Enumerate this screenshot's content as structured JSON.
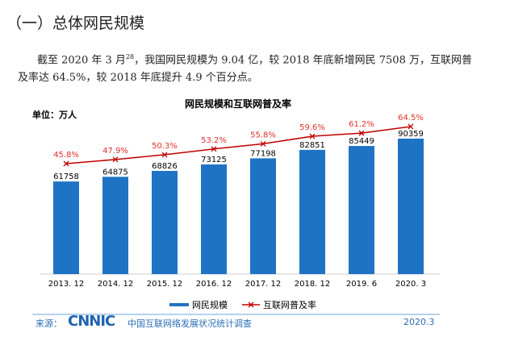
{
  "heading": "（一）总体网民规模",
  "paragraph": {
    "line1_a": "截至 2020 年 3 月",
    "footnote": "28",
    "line1_b": "，我国网民规模为 9.04 亿，较 2018 年底新增网民 7508 万，互联网普",
    "line2": "及率达 64.5%，较 2018 年底提升 4.9 个百分点。"
  },
  "chart_data": {
    "type": "bar+line",
    "title": "网民规模和互联网普及率",
    "unit_label": "单位：万人",
    "categories": [
      "2013. 12",
      "2014. 12",
      "2015. 12",
      "2016. 12",
      "2017. 12",
      "2018. 12",
      "2019. 6",
      "2020. 3"
    ],
    "series": [
      {
        "name": "网民规模",
        "type": "bar",
        "color": "#1f73c4",
        "values": [
          61758,
          64875,
          68826,
          73125,
          77198,
          82851,
          85449,
          90359
        ],
        "labels": [
          "61758",
          "64875",
          "68826",
          "73125",
          "77198",
          "82851",
          "85449",
          "90359"
        ]
      },
      {
        "name": "互联网普及率",
        "type": "line",
        "color": "#c00000",
        "values": [
          45.8,
          47.9,
          50.3,
          53.2,
          55.8,
          59.6,
          61.2,
          64.5
        ],
        "labels": [
          "45.8%",
          "47.9%",
          "50.3%",
          "53.2%",
          "55.8%",
          "59.6%",
          "61.2%",
          "64.5%"
        ]
      }
    ],
    "legend": "bottom"
  },
  "footer": {
    "source_label": "来源：",
    "logo": "CNNIC",
    "survey": "中国互联网络发展状况统计调查",
    "date": "2020.3"
  }
}
